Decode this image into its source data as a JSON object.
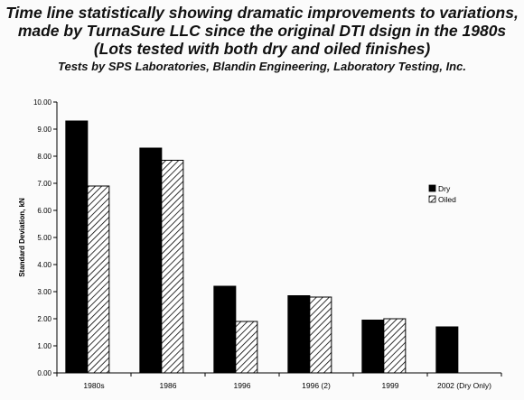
{
  "chart_data": {
    "type": "bar",
    "title_lines": [
      "Time line statistically showing dramatic improvements to variations,",
      "made by TurnaSure LLC since the original DTI dsign in the 1980s",
      "(Lots tested with both dry and oiled finishes)"
    ],
    "subtitle": "Tests by SPS Laboratories, Blandin Engineering, Laboratory Testing, Inc.",
    "xlabel": "",
    "ylabel": "Standard Deviation, kN",
    "ylim": [
      0,
      10
    ],
    "ytick_step": 1,
    "ytick_labels": [
      "0.00",
      "1.00",
      "2.00",
      "3.00",
      "4.00",
      "5.00",
      "6.00",
      "7.00",
      "8.00",
      "9.00",
      "10.00"
    ],
    "categories": [
      "1980s",
      "1986",
      "1996",
      "1996 (2)",
      "1999",
      "2002 (Dry Only)"
    ],
    "series": [
      {
        "name": "Dry",
        "values": [
          9.3,
          8.3,
          3.2,
          2.85,
          1.95,
          1.7
        ],
        "color": "#000000",
        "fill": "solid"
      },
      {
        "name": "Oiled",
        "values": [
          6.9,
          7.85,
          1.9,
          2.8,
          2.0,
          null
        ],
        "color": "#000000",
        "fill": "hatch"
      }
    ],
    "grid": false,
    "legend_position": "right"
  }
}
